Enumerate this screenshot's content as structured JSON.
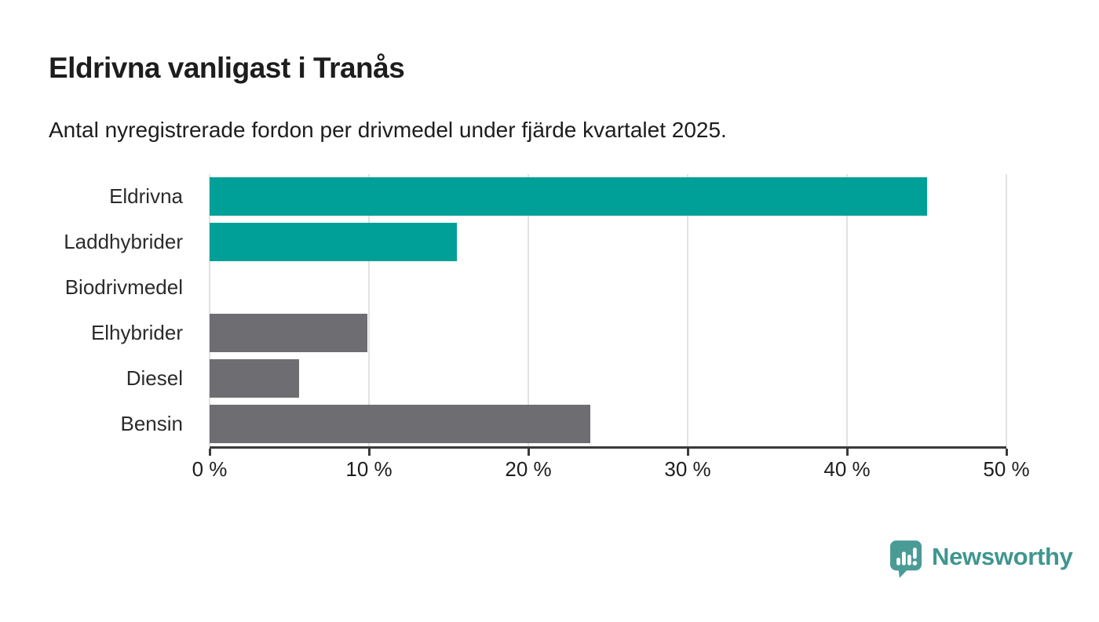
{
  "page": {
    "title": "Eldrivna vanligast i Tranås",
    "subtitle": "Antal nyregistrerade fordon per drivmedel under fjärde kvartalet 2025."
  },
  "chart_data": {
    "type": "bar",
    "orientation": "horizontal",
    "title": "Eldrivna vanligast i Tranås",
    "subtitle": "Antal nyregistrerade fordon per drivmedel under fjärde kvartalet 2025.",
    "categories": [
      "Eldrivna",
      "Laddhybrider",
      "Biodrivmedel",
      "Elhybrider",
      "Diesel",
      "Bensin"
    ],
    "values": [
      45,
      15.5,
      0,
      9.9,
      5.6,
      23.9
    ],
    "unit": "%",
    "xlim": [
      0,
      50
    ],
    "x_tick_values": [
      0,
      10,
      20,
      30,
      40,
      50
    ],
    "x_ticks": [
      "0 %",
      "10 %",
      "20 %",
      "30 %",
      "40 %",
      "50 %"
    ],
    "grid": true,
    "legend": "none",
    "bar_colors": [
      "#00a099",
      "#00a099",
      "#6e6e72",
      "#6e6e72",
      "#6e6e72",
      "#6e6e72"
    ],
    "colors": {
      "highlight": "#00a099",
      "default": "#6e6e72",
      "gridline": "#e2e2e2",
      "axis": "#3a3a3a"
    }
  },
  "branding": {
    "logo_text": "Newsworthy",
    "logo_text_color": "#3f968f",
    "logo_mark_color": "#4a9b96",
    "logo_icon": "newsworthy-speech-bubble-chart-icon"
  }
}
